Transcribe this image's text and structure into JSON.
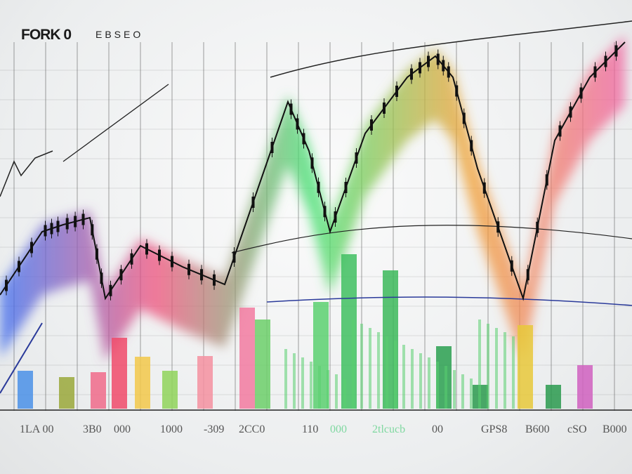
{
  "header": {
    "logo": "FORK 0",
    "subtitle": "EBSEO"
  },
  "chart_data": {
    "type": "bar",
    "title": "",
    "xlabel": "",
    "ylabel": "",
    "grid": true,
    "tick_labels": [
      "1LA 00",
      "3B0",
      "000",
      "1000",
      "-309",
      "2CC0",
      "110",
      "000",
      "2tlcucb",
      "00",
      "GPS8",
      "B600",
      "cSO",
      "B000"
    ],
    "bars": {
      "values": [
        54,
        45,
        52,
        101,
        74,
        54,
        75,
        144,
        127,
        152,
        220,
        197,
        89,
        34,
        119,
        34,
        62
      ],
      "colors": [
        "#4a90e8",
        "#9aa83a",
        "#f06a8a",
        "#f04a6a",
        "#f2c84a",
        "#8fd45a",
        "#f590a0",
        "#f27aa0",
        "#6ccf6a",
        "#5ad070",
        "#3fc060",
        "#3cb85a",
        "#2aa050",
        "#2a9a4e",
        "#e8c83a",
        "#2a9a4e",
        "#d060c0"
      ]
    },
    "series": [
      {
        "values": [
          180,
          270,
          280,
          290,
          175,
          250,
          220,
          195,
          455,
          385,
          270,
          410,
          490,
          520,
          490,
          360,
          175,
          400,
          490,
          540
        ]
      }
    ],
    "colors": {
      "line": "#111111",
      "grid": "#555555",
      "gradient": [
        "#3a6cf0",
        "#f0507a",
        "#40e070",
        "#f0a030",
        "#f060a0"
      ]
    }
  }
}
